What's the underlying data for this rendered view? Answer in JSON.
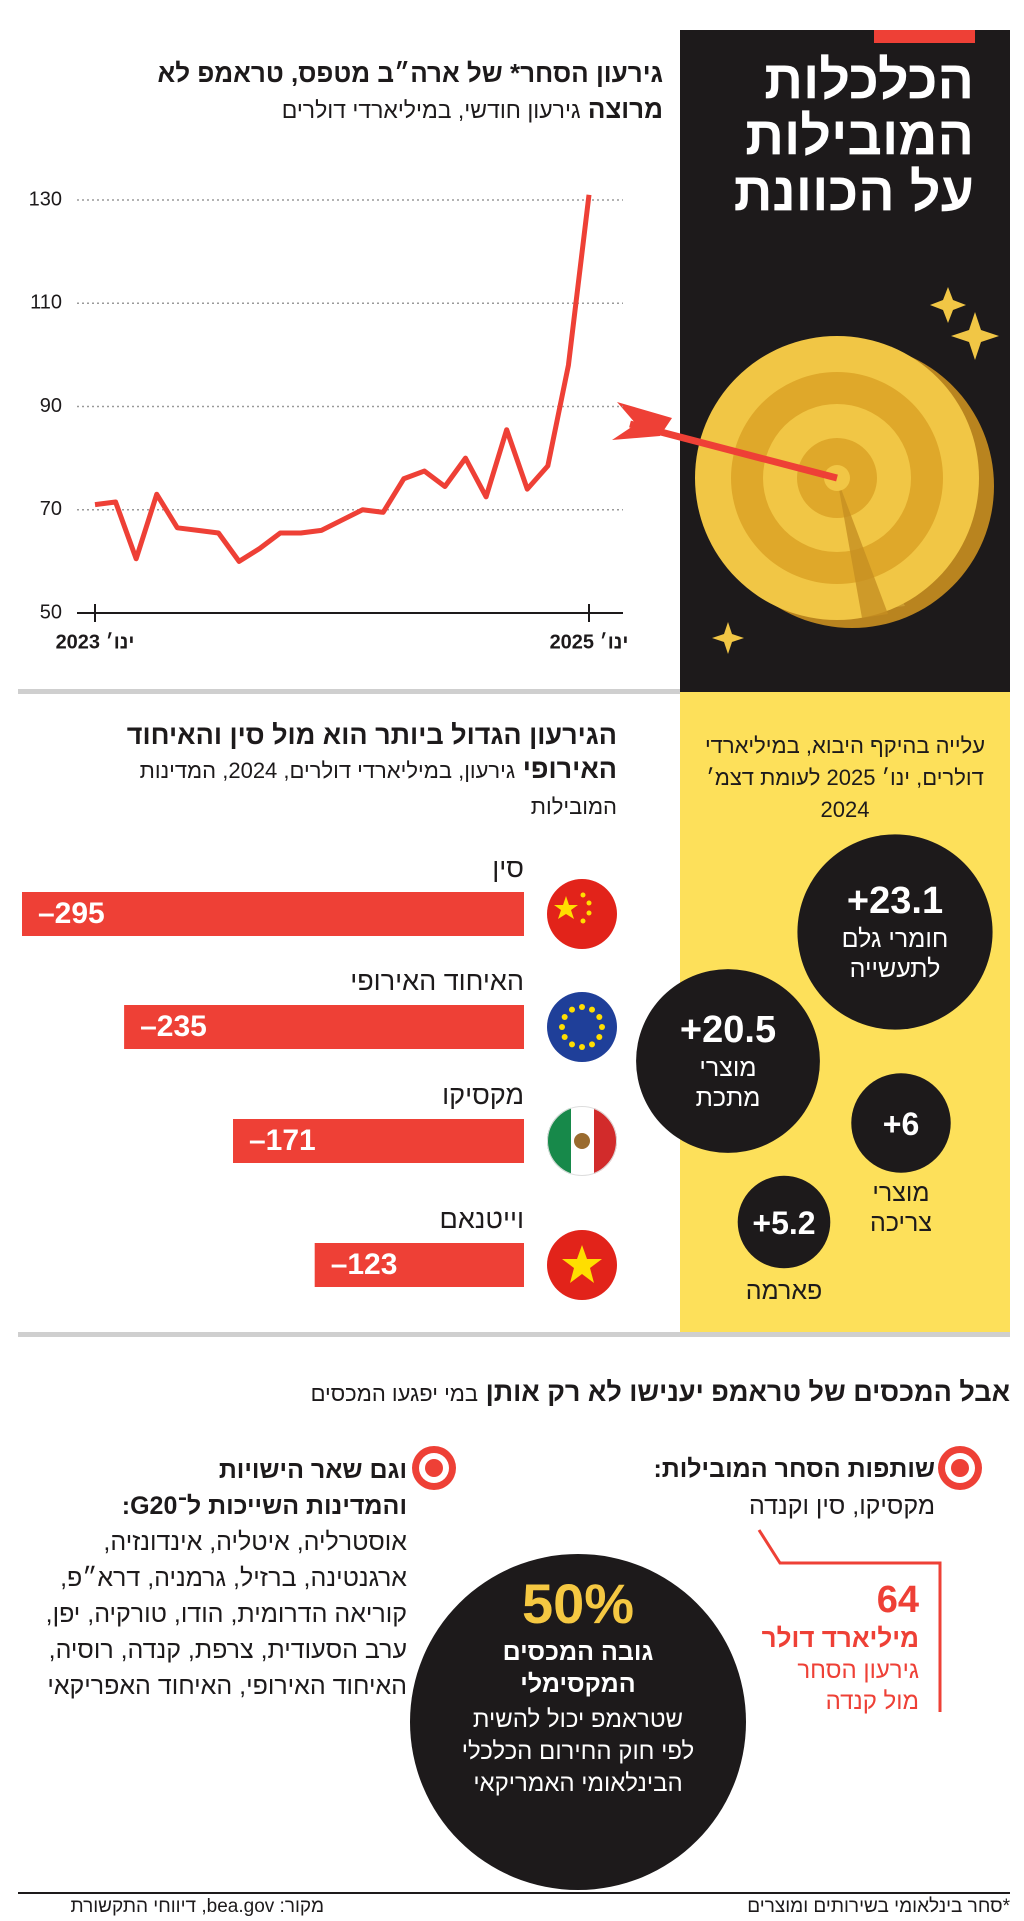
{
  "chart_data": [
    {
      "type": "line",
      "title": "גירעון הסחר* של ארה״ב מטפס, טראמפ לא מרוצה",
      "subtitle": "גירעון חודשי, במיליארדי דולרים",
      "categories": [
        "ינו׳ 2023",
        null,
        null,
        null,
        null,
        null,
        null,
        null,
        null,
        null,
        null,
        null,
        null,
        null,
        null,
        null,
        null,
        null,
        null,
        null,
        null,
        null,
        null,
        null,
        "ינו׳ 2025"
      ],
      "values": [
        71,
        71.5,
        60.5,
        73,
        66.5,
        66,
        65.5,
        60,
        62.5,
        65.5,
        65.5,
        66,
        68,
        70,
        69.5,
        76,
        77.5,
        74.5,
        80,
        72.5,
        85.5,
        74,
        78.5,
        98,
        131
      ],
      "color": "#ee4036",
      "ylim": [
        50,
        130
      ],
      "yticks": [
        50,
        70,
        90,
        110,
        130
      ],
      "grid": true
    },
    {
      "type": "bar",
      "orientation": "horizontal",
      "title": "הגירעון הגדול ביותר הוא מול סין והאיחוד האירופי",
      "subtitle": "גירעון, במיליארדי דולרים, 2024, המדינות המובילות",
      "categories": [
        "סין",
        "האיחוד האירופי",
        "מקסיקו",
        "וייטנאם"
      ],
      "values": [
        -295,
        -235,
        -171,
        -123
      ],
      "value_labels": [
        "–295",
        "–235",
        "–171",
        "–123"
      ],
      "color": "#ee4036"
    },
    {
      "type": "bubble",
      "title": "עלייה בהיקף היבוא, במיליארדי דולרים, ינו׳ 2025 לעומת דצמ׳ 2024",
      "categories": [
        "חומרי גלם לתעשייה",
        "מוצרי מתכת",
        "מוצרי צריכה",
        "פארמה"
      ],
      "values": [
        23.1,
        20.5,
        6,
        5.2
      ],
      "value_labels": [
        "+23.1",
        "+20.5",
        "+6",
        "+5.2"
      ],
      "color": "#1d1a1b"
    }
  ],
  "header": {
    "title": "הכלכלות המובילות על הכוונת"
  },
  "tariffs": {
    "title": "אבל המכסים של טראמפ יענישו לא רק אותן",
    "subtitle": "במי יפגעו המכסים",
    "partners": {
      "title": "שותפות הסחר המובילות:",
      "text": "מקסיקו, סין וקנדה"
    },
    "canada": {
      "value": "64",
      "unit": "מיליארד דולר",
      "text": "גירעון הסחר מול קנדה"
    },
    "others": {
      "title": "וגם שאר הישויות והמדינות השייכות ל־G20:",
      "text": "אוסטרליה, איטליה, אינדונזיה, ארגנטינה, ברזיל, גרמניה, דרא״פ, קוריאה הדרומית, הודו, טורקיה, יפן, ערב הסעודית, צרפת, קנדה, רוסיה, האיחוד האירופי, האיחוד האפריקאי"
    },
    "max_tariff": {
      "value": "50%",
      "title": "גובה המכסים המקסימלי",
      "text": "שטראמפ יכול להשית לפי חוק החירום הכלכלי הבינלאומי האמריקאי"
    }
  },
  "footer": {
    "note": "*סחר בינלאומי בשירותים ומוצרים",
    "source": "מקור: bea.gov, דיווחי התקשורת"
  }
}
